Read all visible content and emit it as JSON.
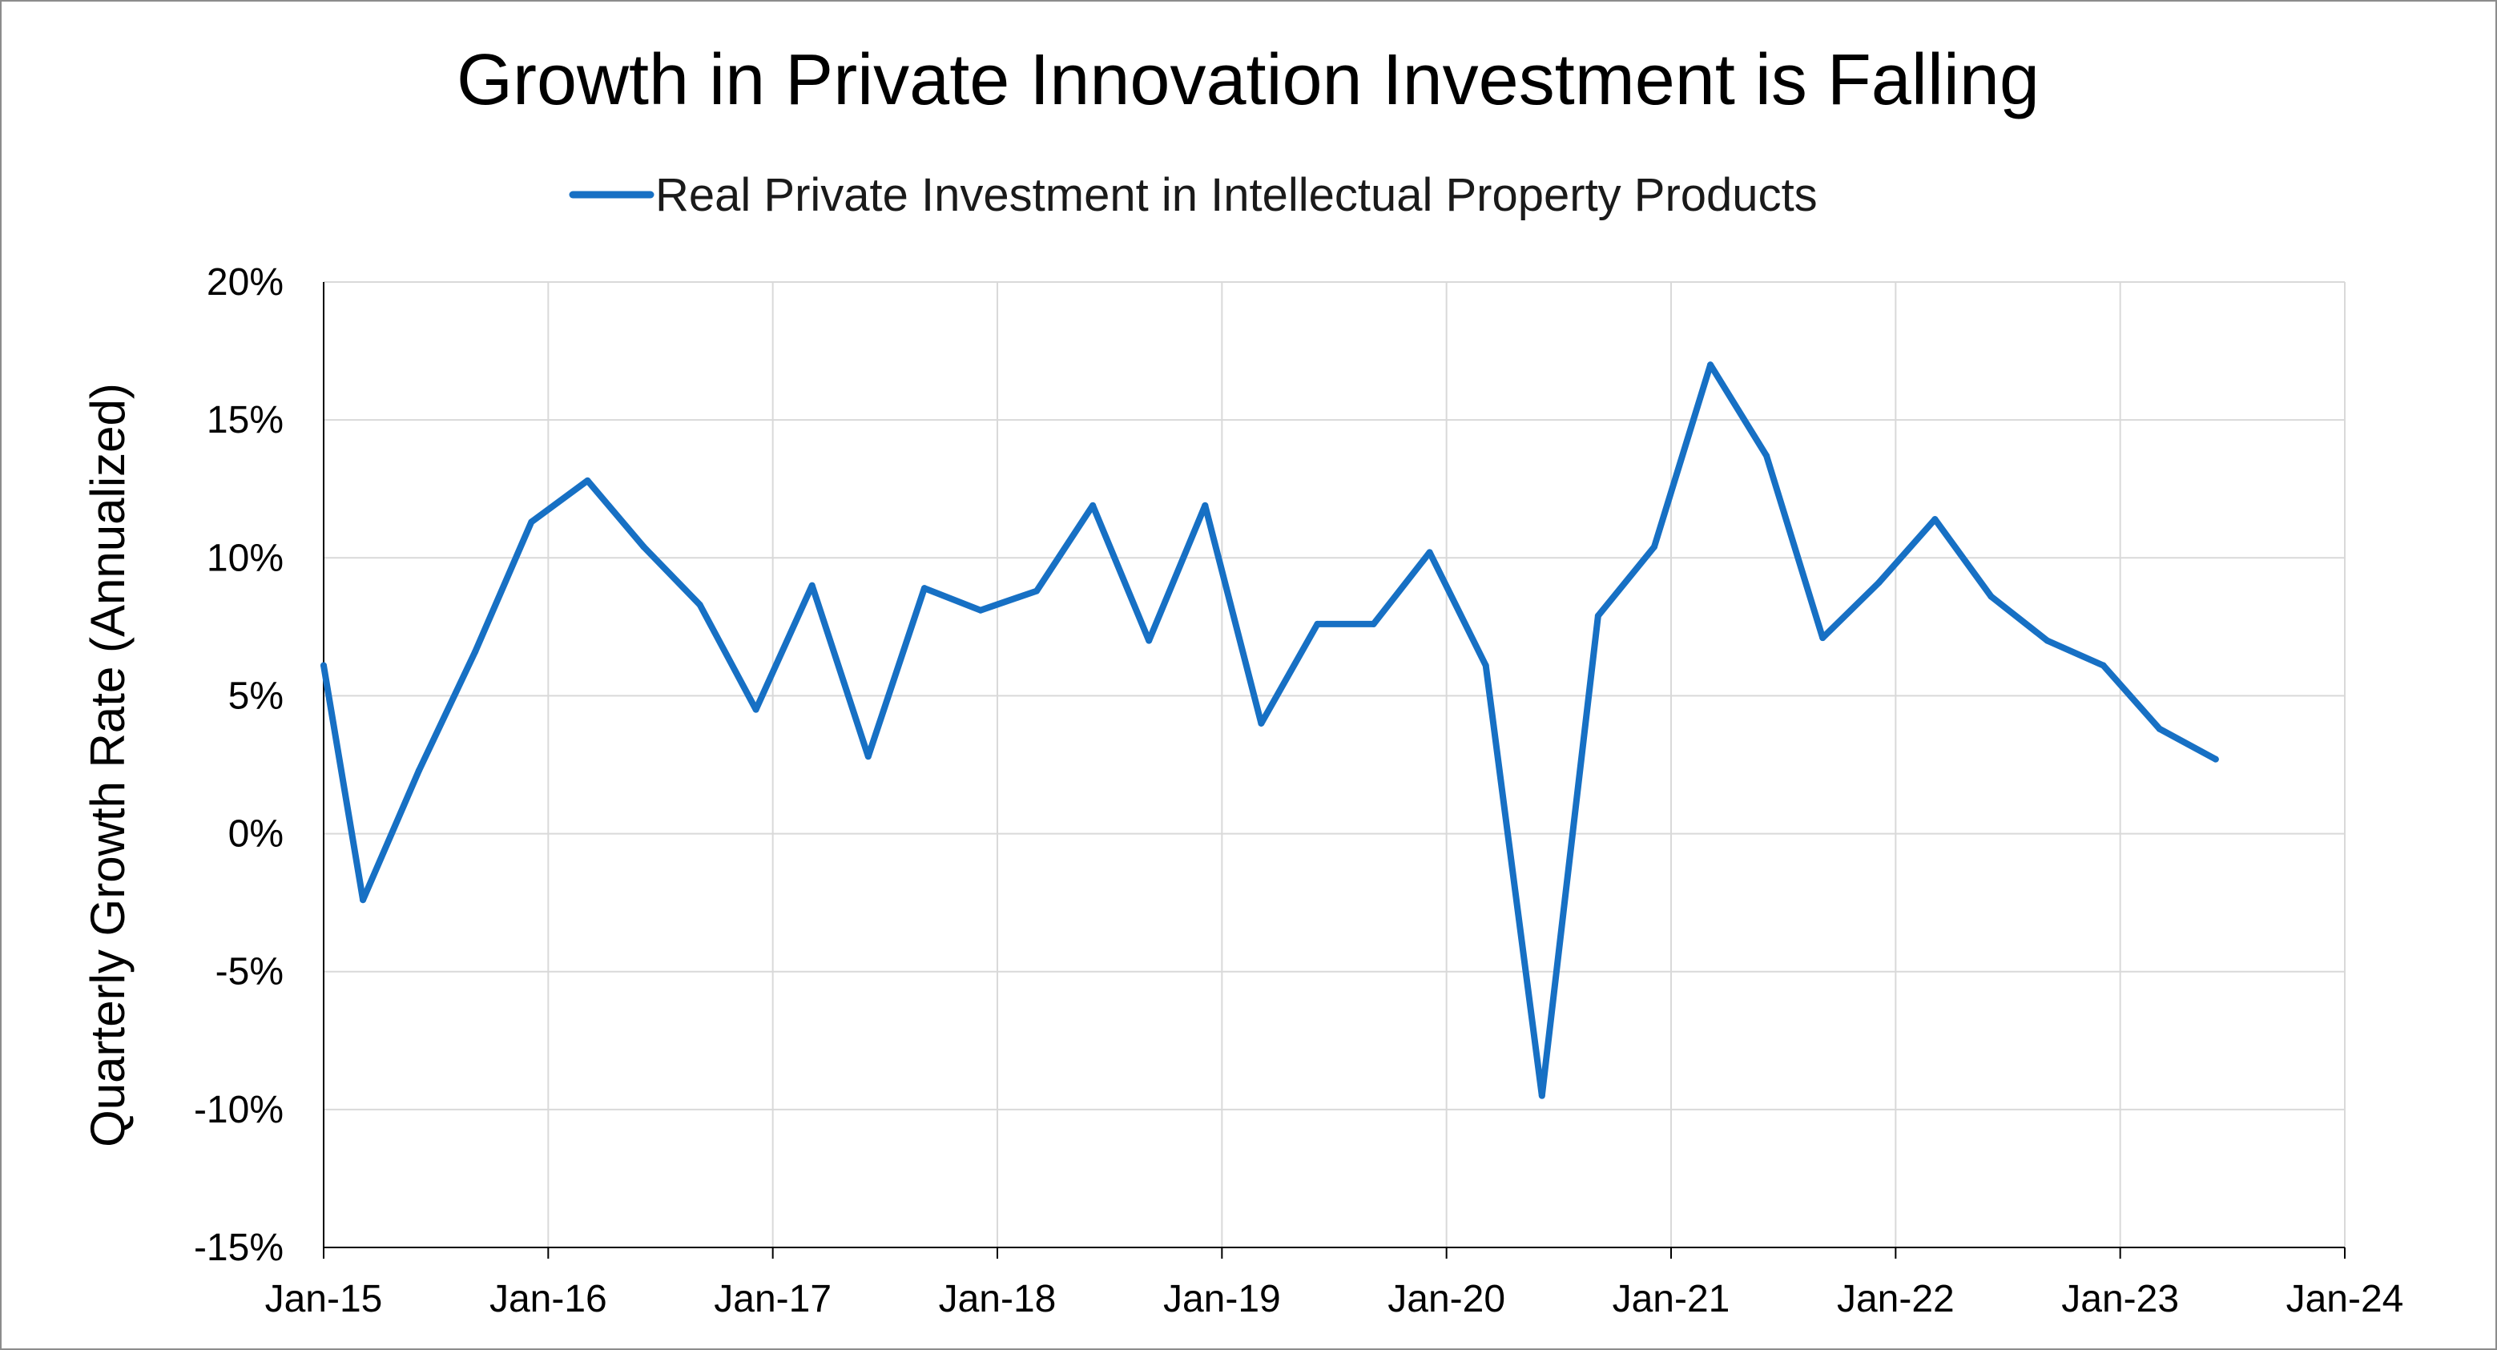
{
  "chart_data": {
    "type": "line",
    "title": "Growth in Private Innovation Investment is Falling",
    "xlabel": "",
    "ylabel": "Quarterly Growth Rate (Annualized)",
    "ylim": [
      -15,
      20
    ],
    "y_step": 5,
    "y_ticks": [
      "20%",
      "15%",
      "10%",
      "5%",
      "0%",
      "-5%",
      "-10%",
      "-15%"
    ],
    "x_ticks": [
      "Jan-15",
      "Jan-16",
      "Jan-17",
      "Jan-18",
      "Jan-19",
      "Jan-20",
      "Jan-21",
      "Jan-22",
      "Jan-23",
      "Jan-24"
    ],
    "x_range_quarters": [
      0,
      36
    ],
    "grid": true,
    "legend_position": "top-center",
    "series": [
      {
        "name": "Real Private Investment in Intellectual Property Products",
        "color": "#1770c4",
        "x_quarter_index": [
          0,
          0.7,
          1.7,
          2.7,
          3.7,
          4.7,
          5.7,
          6.7,
          7.7,
          8.7,
          9.7,
          10.7,
          11.7,
          12.7,
          13.7,
          14.7,
          15.7,
          16.7,
          17.7,
          18.7,
          19.7,
          20.7,
          21.7,
          22.7,
          23.7,
          24.7,
          25.7,
          26.7,
          27.7,
          28.7,
          29.7,
          30.7,
          31.7,
          32.7,
          33.7
        ],
        "values": [
          6.1,
          -2.4,
          2.3,
          6.6,
          11.3,
          12.8,
          10.4,
          8.3,
          4.5,
          9.0,
          2.8,
          8.9,
          8.1,
          8.8,
          11.9,
          7.0,
          11.9,
          4.0,
          7.6,
          7.6,
          10.2,
          6.1,
          -9.5,
          7.9,
          10.4,
          17.0,
          13.7,
          7.1,
          9.1,
          11.4,
          8.6,
          7.0,
          6.1,
          3.8,
          2.7
        ]
      }
    ]
  }
}
